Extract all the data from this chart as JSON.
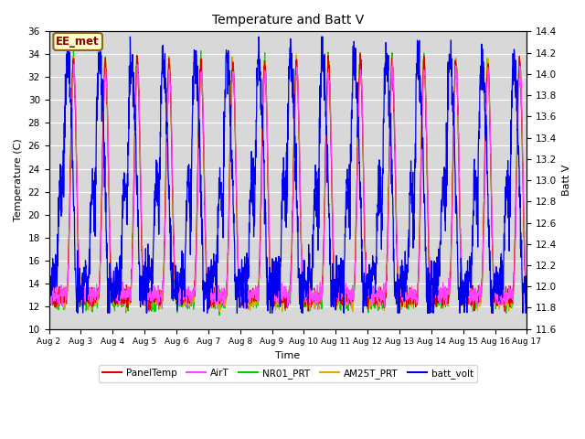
{
  "title": "Temperature and Batt V",
  "xlabel": "Time",
  "ylabel_left": "Temperature (C)",
  "ylabel_right": "Batt V",
  "ylim_left": [
    10,
    36
  ],
  "ylim_right": [
    11.6,
    14.4
  ],
  "annotation": "EE_met",
  "bg_color": "#d8d8d8",
  "legend": [
    "PanelTemp",
    "AirT",
    "NR01_PRT",
    "AM25T_PRT",
    "batt_volt"
  ],
  "colors": {
    "PanelTemp": "#dd0000",
    "AirT": "#ff44ff",
    "NR01_PRT": "#00cc00",
    "AM25T_PRT": "#ddaa00",
    "batt_volt": "#0000ee"
  },
  "n_days": 15,
  "samples_per_day": 144,
  "xtick_labels": [
    "Aug 2",
    "Aug 3",
    "Aug 4",
    "Aug 5",
    "Aug 6",
    "Aug 7",
    "Aug 8",
    "Aug 9",
    "Aug 10",
    "Aug 11",
    "Aug 12",
    "Aug 13",
    "Aug 14",
    "Aug 15",
    "Aug 16",
    "Aug 17"
  ]
}
